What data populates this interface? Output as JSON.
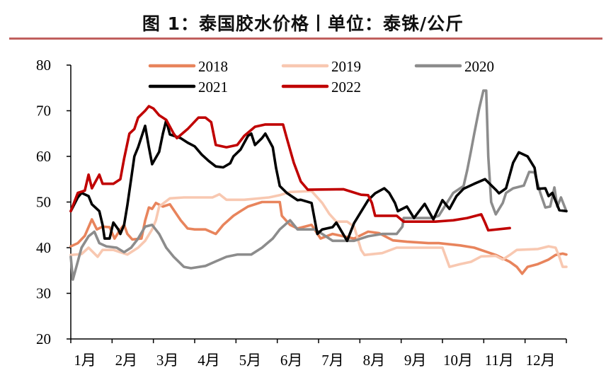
{
  "title": "图 1：泰国胶水价格丨单位：泰铢/公斤",
  "chart_data": {
    "type": "line",
    "title": "图 1：泰国胶水价格丨单位：泰铢/公斤",
    "xlabel": "",
    "ylabel": "",
    "x_unit": "month (1 = start of 1月, 13 = end of 12月)",
    "x_tick_labels": [
      "1月",
      "2月",
      "3月",
      "4月",
      "5月",
      "6月",
      "7月",
      "8月",
      "9月",
      "10月",
      "11月",
      "12月"
    ],
    "y_ticks": [
      20,
      30,
      40,
      50,
      60,
      70,
      80
    ],
    "ylim": [
      20,
      80
    ],
    "xlim": [
      1,
      13
    ],
    "grid": false,
    "legend_position": "top",
    "series": [
      {
        "name": "2018",
        "color": "#E8845C",
        "points": [
          [
            1.0,
            40.3
          ],
          [
            1.17,
            41
          ],
          [
            1.34,
            42.6
          ],
          [
            1.51,
            46.2
          ],
          [
            1.63,
            44
          ],
          [
            1.77,
            44.6
          ],
          [
            1.94,
            44.5
          ],
          [
            2.06,
            42
          ],
          [
            2.2,
            44
          ],
          [
            2.29,
            45
          ],
          [
            2.37,
            43
          ],
          [
            2.49,
            41.8
          ],
          [
            2.71,
            42
          ],
          [
            2.8,
            45.9
          ],
          [
            2.89,
            48.8
          ],
          [
            2.97,
            48.5
          ],
          [
            3.06,
            49.8
          ],
          [
            3.23,
            49
          ],
          [
            3.4,
            49.5
          ],
          [
            3.66,
            46
          ],
          [
            3.83,
            44.2
          ],
          [
            4.0,
            44
          ],
          [
            4.26,
            44
          ],
          [
            4.51,
            43
          ],
          [
            4.69,
            45
          ],
          [
            4.94,
            47
          ],
          [
            5.11,
            48
          ],
          [
            5.29,
            49
          ],
          [
            5.63,
            50
          ],
          [
            6.06,
            50
          ],
          [
            6.11,
            47
          ],
          [
            6.31,
            45
          ],
          [
            6.49,
            44.2
          ],
          [
            6.83,
            45
          ],
          [
            7.05,
            42
          ],
          [
            7.34,
            43
          ],
          [
            7.86,
            42
          ],
          [
            8.2,
            43.5
          ],
          [
            8.46,
            43.2
          ],
          [
            8.8,
            41.6
          ],
          [
            9.14,
            41.3
          ],
          [
            9.66,
            41
          ],
          [
            9.91,
            41
          ],
          [
            10.43,
            40.5
          ],
          [
            10.77,
            40
          ],
          [
            11.03,
            39.2
          ],
          [
            11.29,
            38.4
          ],
          [
            11.63,
            36.9
          ],
          [
            11.8,
            35.8
          ],
          [
            11.93,
            34.3
          ],
          [
            12.06,
            35.8
          ],
          [
            12.31,
            36.4
          ],
          [
            12.57,
            37.4
          ],
          [
            12.74,
            38.4
          ],
          [
            12.91,
            38.7
          ],
          [
            13.0,
            38.5
          ]
        ]
      },
      {
        "name": "2019",
        "color": "#F8C8B1",
        "points": [
          [
            1.0,
            38.4
          ],
          [
            1.26,
            38.6
          ],
          [
            1.43,
            40
          ],
          [
            1.65,
            38
          ],
          [
            1.77,
            39.5
          ],
          [
            2.03,
            39.5
          ],
          [
            2.2,
            39
          ],
          [
            2.37,
            38.5
          ],
          [
            2.63,
            40
          ],
          [
            2.8,
            41.5
          ],
          [
            2.97,
            44
          ],
          [
            3.06,
            46
          ],
          [
            3.14,
            49
          ],
          [
            3.4,
            50.8
          ],
          [
            3.74,
            51
          ],
          [
            4.26,
            51
          ],
          [
            4.43,
            51
          ],
          [
            4.6,
            51.7
          ],
          [
            4.77,
            50.5
          ],
          [
            5.2,
            50.5
          ],
          [
            5.8,
            51
          ],
          [
            6.06,
            51.5
          ],
          [
            6.31,
            52.2
          ],
          [
            6.83,
            52.4
          ],
          [
            7.09,
            49.8
          ],
          [
            7.26,
            47.4
          ],
          [
            7.43,
            45.7
          ],
          [
            7.69,
            45.7
          ],
          [
            7.86,
            44.6
          ],
          [
            8.03,
            39.5
          ],
          [
            8.11,
            38.4
          ],
          [
            8.54,
            38.8
          ],
          [
            8.89,
            40
          ],
          [
            9.57,
            40
          ],
          [
            10.0,
            40
          ],
          [
            10.17,
            35.8
          ],
          [
            10.43,
            36.4
          ],
          [
            10.69,
            36.9
          ],
          [
            10.94,
            38.1
          ],
          [
            11.29,
            38.2
          ],
          [
            11.46,
            37.4
          ],
          [
            11.63,
            38.4
          ],
          [
            11.8,
            39.5
          ],
          [
            12.31,
            39.7
          ],
          [
            12.57,
            40.3
          ],
          [
            12.74,
            40
          ],
          [
            12.83,
            38
          ],
          [
            12.91,
            35.8
          ],
          [
            13.0,
            35.8
          ]
        ]
      },
      {
        "name": "2020",
        "color": "#8C8C8C",
        "points": [
          [
            1.0,
            38
          ],
          [
            1.05,
            33
          ],
          [
            1.14,
            36
          ],
          [
            1.26,
            40
          ],
          [
            1.43,
            42.5
          ],
          [
            1.57,
            43.5
          ],
          [
            1.69,
            41
          ],
          [
            1.86,
            40.3
          ],
          [
            2.11,
            40
          ],
          [
            2.29,
            39
          ],
          [
            2.46,
            40
          ],
          [
            2.63,
            42
          ],
          [
            2.8,
            44.6
          ],
          [
            2.97,
            45
          ],
          [
            3.14,
            43
          ],
          [
            3.31,
            40
          ],
          [
            3.49,
            38
          ],
          [
            3.74,
            35.8
          ],
          [
            3.91,
            35.5
          ],
          [
            4.26,
            36
          ],
          [
            4.51,
            37
          ],
          [
            4.77,
            38
          ],
          [
            5.03,
            38.5
          ],
          [
            5.37,
            38.5
          ],
          [
            5.63,
            40
          ],
          [
            5.89,
            42
          ],
          [
            6.06,
            44
          ],
          [
            6.31,
            46
          ],
          [
            6.49,
            44
          ],
          [
            6.91,
            44
          ],
          [
            7.09,
            43
          ],
          [
            7.34,
            41.5
          ],
          [
            7.86,
            41.5
          ],
          [
            8.2,
            42.5
          ],
          [
            8.54,
            43
          ],
          [
            8.89,
            43
          ],
          [
            9.03,
            44.6
          ],
          [
            9.06,
            46.5
          ],
          [
            9.74,
            46.5
          ],
          [
            9.91,
            47
          ],
          [
            10.26,
            52
          ],
          [
            10.51,
            53.5
          ],
          [
            10.6,
            57
          ],
          [
            10.69,
            61.2
          ],
          [
            10.77,
            65
          ],
          [
            10.89,
            70.5
          ],
          [
            10.99,
            74.4
          ],
          [
            11.06,
            74.4
          ],
          [
            11.11,
            60
          ],
          [
            11.18,
            50
          ],
          [
            11.29,
            47.3
          ],
          [
            11.46,
            49.8
          ],
          [
            11.54,
            52
          ],
          [
            11.71,
            53
          ],
          [
            11.97,
            53.6
          ],
          [
            12.1,
            56.6
          ],
          [
            12.23,
            56.5
          ],
          [
            12.37,
            52
          ],
          [
            12.49,
            48.8
          ],
          [
            12.61,
            49
          ],
          [
            12.71,
            53.2
          ],
          [
            12.78,
            49
          ],
          [
            12.87,
            51
          ],
          [
            13.0,
            48
          ]
        ]
      },
      {
        "name": "2021",
        "color": "#000000",
        "points": [
          [
            1.0,
            48
          ],
          [
            1.17,
            51
          ],
          [
            1.26,
            52
          ],
          [
            1.43,
            51.3
          ],
          [
            1.51,
            49.5
          ],
          [
            1.69,
            48
          ],
          [
            1.77,
            45
          ],
          [
            1.82,
            42
          ],
          [
            1.94,
            42
          ],
          [
            2.03,
            45.5
          ],
          [
            2.15,
            44
          ],
          [
            2.2,
            43
          ],
          [
            2.29,
            45
          ],
          [
            2.37,
            49.3
          ],
          [
            2.46,
            55
          ],
          [
            2.54,
            60
          ],
          [
            2.63,
            62
          ],
          [
            2.8,
            66.7
          ],
          [
            2.89,
            62
          ],
          [
            2.97,
            58.3
          ],
          [
            3.14,
            61
          ],
          [
            3.23,
            65
          ],
          [
            3.31,
            67.9
          ],
          [
            3.4,
            64.8
          ],
          [
            3.66,
            64
          ],
          [
            3.83,
            63
          ],
          [
            4.0,
            62.2
          ],
          [
            4.17,
            60.4
          ],
          [
            4.34,
            59
          ],
          [
            4.51,
            57.8
          ],
          [
            4.69,
            57.6
          ],
          [
            4.86,
            58.5
          ],
          [
            4.94,
            60
          ],
          [
            5.11,
            61.5
          ],
          [
            5.29,
            64.5
          ],
          [
            5.37,
            65
          ],
          [
            5.46,
            62.5
          ],
          [
            5.63,
            64
          ],
          [
            5.71,
            65
          ],
          [
            5.89,
            62
          ],
          [
            5.97,
            57.5
          ],
          [
            6.06,
            53.5
          ],
          [
            6.23,
            52
          ],
          [
            6.49,
            50.4
          ],
          [
            6.57,
            50.5
          ],
          [
            6.83,
            49.8
          ],
          [
            6.97,
            43
          ],
          [
            7.09,
            44
          ],
          [
            7.34,
            44.5
          ],
          [
            7.43,
            45.5
          ],
          [
            7.69,
            41.5
          ],
          [
            7.86,
            45.4
          ],
          [
            8.2,
            50.4
          ],
          [
            8.37,
            51.9
          ],
          [
            8.59,
            53
          ],
          [
            8.71,
            52
          ],
          [
            8.85,
            49.8
          ],
          [
            8.92,
            48
          ],
          [
            9.14,
            49
          ],
          [
            9.31,
            46.5
          ],
          [
            9.57,
            49.6
          ],
          [
            9.78,
            46.2
          ],
          [
            10.0,
            50.4
          ],
          [
            10.17,
            48.5
          ],
          [
            10.34,
            51.3
          ],
          [
            10.51,
            52.9
          ],
          [
            10.77,
            54
          ],
          [
            11.03,
            55
          ],
          [
            11.29,
            52.7
          ],
          [
            11.37,
            51.9
          ],
          [
            11.54,
            53
          ],
          [
            11.71,
            58.6
          ],
          [
            11.85,
            60.9
          ],
          [
            12.06,
            60
          ],
          [
            12.23,
            57.5
          ],
          [
            12.31,
            52.9
          ],
          [
            12.49,
            53
          ],
          [
            12.57,
            51.3
          ],
          [
            12.66,
            52
          ],
          [
            12.83,
            48.2
          ],
          [
            13.0,
            48
          ]
        ]
      },
      {
        "name": "2022",
        "color": "#C00000",
        "points": [
          [
            1.0,
            48
          ],
          [
            1.17,
            52
          ],
          [
            1.34,
            52.5
          ],
          [
            1.43,
            56
          ],
          [
            1.51,
            53
          ],
          [
            1.69,
            56
          ],
          [
            1.77,
            54
          ],
          [
            2.03,
            54
          ],
          [
            2.2,
            55
          ],
          [
            2.29,
            59.5
          ],
          [
            2.42,
            65
          ],
          [
            2.54,
            66
          ],
          [
            2.63,
            68.5
          ],
          [
            2.8,
            70
          ],
          [
            2.89,
            71
          ],
          [
            3.0,
            70.5
          ],
          [
            3.14,
            69
          ],
          [
            3.31,
            68
          ],
          [
            3.49,
            65
          ],
          [
            3.57,
            64
          ],
          [
            3.83,
            66
          ],
          [
            4.09,
            68.5
          ],
          [
            4.26,
            68.5
          ],
          [
            4.4,
            67.5
          ],
          [
            4.51,
            62.5
          ],
          [
            4.77,
            62
          ],
          [
            5.03,
            62.5
          ],
          [
            5.2,
            64.5
          ],
          [
            5.46,
            66.5
          ],
          [
            5.71,
            67
          ],
          [
            6.14,
            67
          ],
          [
            6.23,
            64
          ],
          [
            6.4,
            58.6
          ],
          [
            6.57,
            54.5
          ],
          [
            6.74,
            52.7
          ],
          [
            7.6,
            52.8
          ],
          [
            8.03,
            51.6
          ],
          [
            8.2,
            51.5
          ],
          [
            8.29,
            49.8
          ],
          [
            8.37,
            47
          ],
          [
            8.89,
            47
          ],
          [
            9.06,
            45.7
          ],
          [
            9.83,
            45.7
          ],
          [
            10.26,
            46
          ],
          [
            10.6,
            46.5
          ],
          [
            10.94,
            47.3
          ],
          [
            11.03,
            45.5
          ],
          [
            11.11,
            43.8
          ],
          [
            11.63,
            44.3
          ]
        ]
      }
    ]
  }
}
